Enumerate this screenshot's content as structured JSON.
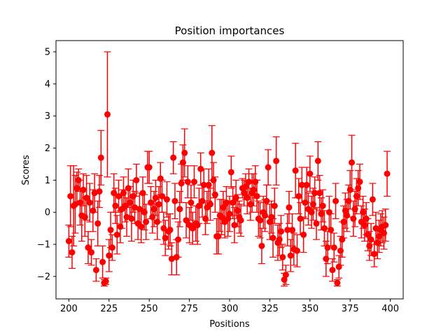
{
  "chart_data": {
    "type": "scatter",
    "title": "Position importances",
    "xlabel": "Positions",
    "ylabel": "Scores",
    "xlim": [
      192,
      408
    ],
    "ylim": [
      -2.7,
      5.35
    ],
    "xticks": [
      200,
      225,
      250,
      275,
      300,
      325,
      350,
      375,
      400
    ],
    "yticks": [
      -2,
      -1,
      0,
      1,
      2,
      3,
      4,
      5
    ],
    "tick_labels_x": [
      "200",
      "225",
      "250",
      "275",
      "300",
      "325",
      "350",
      "375",
      "400"
    ],
    "tick_labels_y": [
      "−2",
      "−1",
      "0",
      "1",
      "2",
      "3",
      "4",
      "5"
    ],
    "grid": false,
    "legend": "none",
    "color": "#ff0000",
    "error_bars": true,
    "points": [
      {
        "x": 200,
        "y": -0.9,
        "err": 0.5
      },
      {
        "x": 201,
        "y": 0.5,
        "err": 0.95
      },
      {
        "x": 202,
        "y": -1.25,
        "err": 0.5
      },
      {
        "x": 203,
        "y": 0.2,
        "err": 1.25
      },
      {
        "x": 204,
        "y": 0.25,
        "err": 0.9
      },
      {
        "x": 205,
        "y": 0.75,
        "err": 0.5
      },
      {
        "x": 206,
        "y": 1.0,
        "err": 0.35
      },
      {
        "x": 207,
        "y": 0.3,
        "err": 0.7
      },
      {
        "x": 208,
        "y": -0.1,
        "err": 0.8
      },
      {
        "x": 209,
        "y": 0.7,
        "err": 0.5
      },
      {
        "x": 210,
        "y": -0.15,
        "err": 0.6
      },
      {
        "x": 211,
        "y": 0.45,
        "err": 0.7
      },
      {
        "x": 212,
        "y": -1.1,
        "err": 0.5
      },
      {
        "x": 213,
        "y": 0.3,
        "err": 0.6
      },
      {
        "x": 214,
        "y": -1.25,
        "err": 0.4
      },
      {
        "x": 215,
        "y": 0.05,
        "err": 0.65
      },
      {
        "x": 216,
        "y": 0.6,
        "err": 0.6
      },
      {
        "x": 217,
        "y": -1.8,
        "err": 0.35
      },
      {
        "x": 218,
        "y": -0.35,
        "err": 0.7
      },
      {
        "x": 219,
        "y": 0.65,
        "err": 0.5
      },
      {
        "x": 220,
        "y": 1.7,
        "err": 0.85
      },
      {
        "x": 221,
        "y": -1.55,
        "err": 0.5
      },
      {
        "x": 222,
        "y": -2.2,
        "err": 0.1
      },
      {
        "x": 223,
        "y": -2.15,
        "err": 0.1
      },
      {
        "x": 224,
        "y": 3.05,
        "err": 1.95
      },
      {
        "x": 225,
        "y": -1.35,
        "err": 0.5
      },
      {
        "x": 226,
        "y": -0.55,
        "err": 0.55
      },
      {
        "x": 227,
        "y": -1.1,
        "err": 0.4
      },
      {
        "x": 228,
        "y": 0.6,
        "err": 0.6
      },
      {
        "x": 229,
        "y": 0.2,
        "err": 0.55
      },
      {
        "x": 230,
        "y": -0.7,
        "err": 0.6
      },
      {
        "x": 231,
        "y": 0.5,
        "err": 0.5
      },
      {
        "x": 232,
        "y": -0.45,
        "err": 0.5
      },
      {
        "x": 233,
        "y": 0.1,
        "err": 0.6
      },
      {
        "x": 234,
        "y": 0.6,
        "err": 0.5
      },
      {
        "x": 235,
        "y": 0.2,
        "err": 0.5
      },
      {
        "x": 236,
        "y": -0.15,
        "err": 0.6
      },
      {
        "x": 237,
        "y": 0.75,
        "err": 0.6
      },
      {
        "x": 238,
        "y": 0.3,
        "err": 0.5
      },
      {
        "x": 239,
        "y": -0.2,
        "err": 0.7
      },
      {
        "x": 240,
        "y": 0.5,
        "err": 0.5
      },
      {
        "x": 241,
        "y": 0.15,
        "err": 0.5
      },
      {
        "x": 242,
        "y": 1.0,
        "err": 0.5
      },
      {
        "x": 243,
        "y": -0.35,
        "err": 0.5
      },
      {
        "x": 244,
        "y": 0.1,
        "err": 0.5
      },
      {
        "x": 245,
        "y": -0.45,
        "err": 0.5
      },
      {
        "x": 246,
        "y": 0.6,
        "err": 0.5
      },
      {
        "x": 247,
        "y": 0.0,
        "err": 0.55
      },
      {
        "x": 248,
        "y": -0.3,
        "err": 0.55
      },
      {
        "x": 249,
        "y": 1.4,
        "err": 0.5
      },
      {
        "x": 250,
        "y": 1.4,
        "err": 0.5
      },
      {
        "x": 251,
        "y": 0.3,
        "err": 0.5
      },
      {
        "x": 252,
        "y": -0.15,
        "err": 0.5
      },
      {
        "x": 253,
        "y": 0.1,
        "err": 0.55
      },
      {
        "x": 254,
        "y": 0.45,
        "err": 0.55
      },
      {
        "x": 255,
        "y": -0.3,
        "err": 0.55
      },
      {
        "x": 256,
        "y": 0.25,
        "err": 0.55
      },
      {
        "x": 257,
        "y": 1.05,
        "err": 0.5
      },
      {
        "x": 258,
        "y": 0.5,
        "err": 0.5
      },
      {
        "x": 259,
        "y": -0.5,
        "err": 0.5
      },
      {
        "x": 260,
        "y": -0.8,
        "err": 0.55
      },
      {
        "x": 261,
        "y": 0.4,
        "err": 0.55
      },
      {
        "x": 262,
        "y": -0.6,
        "err": 0.55
      },
      {
        "x": 263,
        "y": -0.55,
        "err": 0.5
      },
      {
        "x": 264,
        "y": -1.45,
        "err": 0.5
      },
      {
        "x": 265,
        "y": 1.7,
        "err": 0.5
      },
      {
        "x": 266,
        "y": 0.35,
        "err": 0.55
      },
      {
        "x": 267,
        "y": -1.4,
        "err": 0.55
      },
      {
        "x": 268,
        "y": -0.85,
        "err": 0.55
      },
      {
        "x": 269,
        "y": 0.1,
        "err": 0.55
      },
      {
        "x": 270,
        "y": 0.9,
        "err": 0.6
      },
      {
        "x": 271,
        "y": 1.55,
        "err": 0.55
      },
      {
        "x": 272,
        "y": 1.85,
        "err": 0.75
      },
      {
        "x": 273,
        "y": -0.25,
        "err": 0.55
      },
      {
        "x": 274,
        "y": 0.95,
        "err": 0.5
      },
      {
        "x": 275,
        "y": -0.4,
        "err": 0.55
      },
      {
        "x": 276,
        "y": 0.3,
        "err": 0.55
      },
      {
        "x": 277,
        "y": -0.5,
        "err": 0.5
      },
      {
        "x": 278,
        "y": 0.95,
        "err": 0.5
      },
      {
        "x": 279,
        "y": -0.35,
        "err": 0.55
      },
      {
        "x": 280,
        "y": -0.4,
        "err": 0.6
      },
      {
        "x": 281,
        "y": 0.2,
        "err": 0.55
      },
      {
        "x": 282,
        "y": 1.35,
        "err": 0.5
      },
      {
        "x": 283,
        "y": 0.35,
        "err": 0.5
      },
      {
        "x": 284,
        "y": 0.85,
        "err": 0.5
      },
      {
        "x": 285,
        "y": -0.2,
        "err": 0.5
      },
      {
        "x": 286,
        "y": 0.15,
        "err": 0.5
      },
      {
        "x": 287,
        "y": 0.85,
        "err": 0.5
      },
      {
        "x": 288,
        "y": 0.25,
        "err": 0.5
      },
      {
        "x": 289,
        "y": 1.85,
        "err": 0.85
      },
      {
        "x": 290,
        "y": 1.0,
        "err": 0.55
      },
      {
        "x": 291,
        "y": 0.55,
        "err": 0.55
      },
      {
        "x": 292,
        "y": -0.75,
        "err": 0.55
      },
      {
        "x": 293,
        "y": -0.75,
        "err": 0.55
      },
      {
        "x": 294,
        "y": -0.1,
        "err": 0.5
      },
      {
        "x": 295,
        "y": -0.15,
        "err": 0.55
      },
      {
        "x": 296,
        "y": 0.15,
        "err": 0.5
      },
      {
        "x": 297,
        "y": -0.3,
        "err": 0.5
      },
      {
        "x": 298,
        "y": 0.3,
        "err": 0.5
      },
      {
        "x": 299,
        "y": -0.2,
        "err": 0.55
      },
      {
        "x": 300,
        "y": -0.05,
        "err": 0.55
      },
      {
        "x": 301,
        "y": 1.25,
        "err": 0.5
      },
      {
        "x": 302,
        "y": 0.3,
        "err": 0.5
      },
      {
        "x": 303,
        "y": -0.4,
        "err": 0.55
      },
      {
        "x": 304,
        "y": 0.45,
        "err": 0.55
      },
      {
        "x": 305,
        "y": 0.05,
        "err": 0.5
      },
      {
        "x": 306,
        "y": -0.15,
        "err": 0.5
      },
      {
        "x": 307,
        "y": -0.25,
        "err": 0.5
      },
      {
        "x": 308,
        "y": 0.75,
        "err": 0.3
      },
      {
        "x": 309,
        "y": 0.6,
        "err": 0.4
      },
      {
        "x": 310,
        "y": 0.8,
        "err": 0.4
      },
      {
        "x": 311,
        "y": 0.45,
        "err": 0.5
      },
      {
        "x": 312,
        "y": 0.95,
        "err": 0.4
      },
      {
        "x": 313,
        "y": 0.25,
        "err": 0.5
      },
      {
        "x": 314,
        "y": 0.6,
        "err": 0.6
      },
      {
        "x": 315,
        "y": 0.7,
        "err": 0.5
      },
      {
        "x": 316,
        "y": 0.95,
        "err": 0.5
      },
      {
        "x": 317,
        "y": 0.5,
        "err": 0.5
      },
      {
        "x": 318,
        "y": -0.2,
        "err": 0.55
      },
      {
        "x": 319,
        "y": -0.25,
        "err": 0.55
      },
      {
        "x": 320,
        "y": -1.05,
        "err": 0.55
      },
      {
        "x": 321,
        "y": 0.0,
        "err": 0.5
      },
      {
        "x": 322,
        "y": -0.1,
        "err": 0.5
      },
      {
        "x": 323,
        "y": 0.35,
        "err": 0.5
      },
      {
        "x": 324,
        "y": 1.4,
        "err": 0.55
      },
      {
        "x": 325,
        "y": -0.3,
        "err": 0.55
      },
      {
        "x": 326,
        "y": -0.15,
        "err": 0.5
      },
      {
        "x": 327,
        "y": -0.8,
        "err": 0.6
      },
      {
        "x": 328,
        "y": 0.2,
        "err": 0.55
      },
      {
        "x": 329,
        "y": 1.6,
        "err": 0.75
      },
      {
        "x": 330,
        "y": -0.95,
        "err": 0.55
      },
      {
        "x": 331,
        "y": -0.85,
        "err": 0.5
      },
      {
        "x": 332,
        "y": -0.6,
        "err": 0.5
      },
      {
        "x": 333,
        "y": -1.4,
        "err": 0.4
      },
      {
        "x": 334,
        "y": -2.1,
        "err": 0.2
      },
      {
        "x": 335,
        "y": -1.95,
        "err": 0.3
      },
      {
        "x": 336,
        "y": -0.55,
        "err": 0.5
      },
      {
        "x": 337,
        "y": 0.15,
        "err": 0.5
      },
      {
        "x": 338,
        "y": -1.35,
        "err": 0.5
      },
      {
        "x": 339,
        "y": -0.55,
        "err": 0.5
      },
      {
        "x": 340,
        "y": -1.15,
        "err": 0.5
      },
      {
        "x": 341,
        "y": 1.3,
        "err": 0.85
      },
      {
        "x": 342,
        "y": -1.2,
        "err": 0.5
      },
      {
        "x": 343,
        "y": 0.5,
        "err": 0.55
      },
      {
        "x": 344,
        "y": -0.2,
        "err": 0.5
      },
      {
        "x": 345,
        "y": 0.85,
        "err": 0.55
      },
      {
        "x": 346,
        "y": -0.7,
        "err": 0.55
      },
      {
        "x": 347,
        "y": 0.3,
        "err": 0.5
      },
      {
        "x": 348,
        "y": 0.85,
        "err": 0.55
      },
      {
        "x": 349,
        "y": 0.1,
        "err": 0.5
      },
      {
        "x": 350,
        "y": 1.2,
        "err": 0.55
      },
      {
        "x": 351,
        "y": 0.0,
        "err": 0.5
      },
      {
        "x": 352,
        "y": 0.25,
        "err": 0.5
      },
      {
        "x": 353,
        "y": 0.6,
        "err": 0.5
      },
      {
        "x": 354,
        "y": -0.35,
        "err": 0.5
      },
      {
        "x": 355,
        "y": 1.6,
        "err": 0.6
      },
      {
        "x": 356,
        "y": 0.6,
        "err": 0.55
      },
      {
        "x": 357,
        "y": -0.05,
        "err": 0.5
      },
      {
        "x": 358,
        "y": 0.2,
        "err": 0.5
      },
      {
        "x": 359,
        "y": -0.5,
        "err": 0.55
      },
      {
        "x": 360,
        "y": -1.45,
        "err": 0.55
      },
      {
        "x": 361,
        "y": -1.1,
        "err": 0.5
      },
      {
        "x": 362,
        "y": 0.0,
        "err": 0.5
      },
      {
        "x": 363,
        "y": -0.55,
        "err": 0.5
      },
      {
        "x": 364,
        "y": -1.8,
        "err": 0.35
      },
      {
        "x": 365,
        "y": -1.1,
        "err": 0.45
      },
      {
        "x": 366,
        "y": 0.35,
        "err": 0.55
      },
      {
        "x": 367,
        "y": -2.2,
        "err": 0.1
      },
      {
        "x": 368,
        "y": -1.7,
        "err": 0.35
      },
      {
        "x": 369,
        "y": -1.2,
        "err": 0.45
      },
      {
        "x": 370,
        "y": -0.85,
        "err": 0.55
      },
      {
        "x": 371,
        "y": -0.3,
        "err": 0.5
      },
      {
        "x": 372,
        "y": 0.05,
        "err": 0.55
      },
      {
        "x": 373,
        "y": -0.1,
        "err": 0.5
      },
      {
        "x": 374,
        "y": 0.35,
        "err": 0.5
      },
      {
        "x": 375,
        "y": 0.7,
        "err": 0.6
      },
      {
        "x": 376,
        "y": 1.55,
        "err": 0.85
      },
      {
        "x": 377,
        "y": -0.2,
        "err": 0.55
      },
      {
        "x": 378,
        "y": 0.1,
        "err": 0.55
      },
      {
        "x": 379,
        "y": 0.5,
        "err": 0.55
      },
      {
        "x": 380,
        "y": 0.75,
        "err": 0.55
      },
      {
        "x": 381,
        "y": 0.95,
        "err": 0.55
      },
      {
        "x": 382,
        "y": -0.3,
        "err": 0.5
      },
      {
        "x": 383,
        "y": 0.0,
        "err": 0.5
      },
      {
        "x": 384,
        "y": -0.4,
        "err": 0.5
      },
      {
        "x": 385,
        "y": -0.2,
        "err": 0.5
      },
      {
        "x": 386,
        "y": -0.7,
        "err": 0.5
      },
      {
        "x": 387,
        "y": -1.05,
        "err": 0.45
      },
      {
        "x": 388,
        "y": -0.85,
        "err": 0.5
      },
      {
        "x": 389,
        "y": 0.4,
        "err": 0.5
      },
      {
        "x": 390,
        "y": -1.3,
        "err": 0.4
      },
      {
        "x": 391,
        "y": -0.5,
        "err": 0.5
      },
      {
        "x": 392,
        "y": -0.95,
        "err": 0.5
      },
      {
        "x": 393,
        "y": -0.75,
        "err": 0.5
      },
      {
        "x": 394,
        "y": -0.55,
        "err": 0.5
      },
      {
        "x": 395,
        "y": -0.45,
        "err": 0.5
      },
      {
        "x": 396,
        "y": -0.65,
        "err": 0.5
      },
      {
        "x": 397,
        "y": -0.4,
        "err": 0.5
      },
      {
        "x": 398,
        "y": 1.2,
        "err": 0.7
      }
    ]
  }
}
